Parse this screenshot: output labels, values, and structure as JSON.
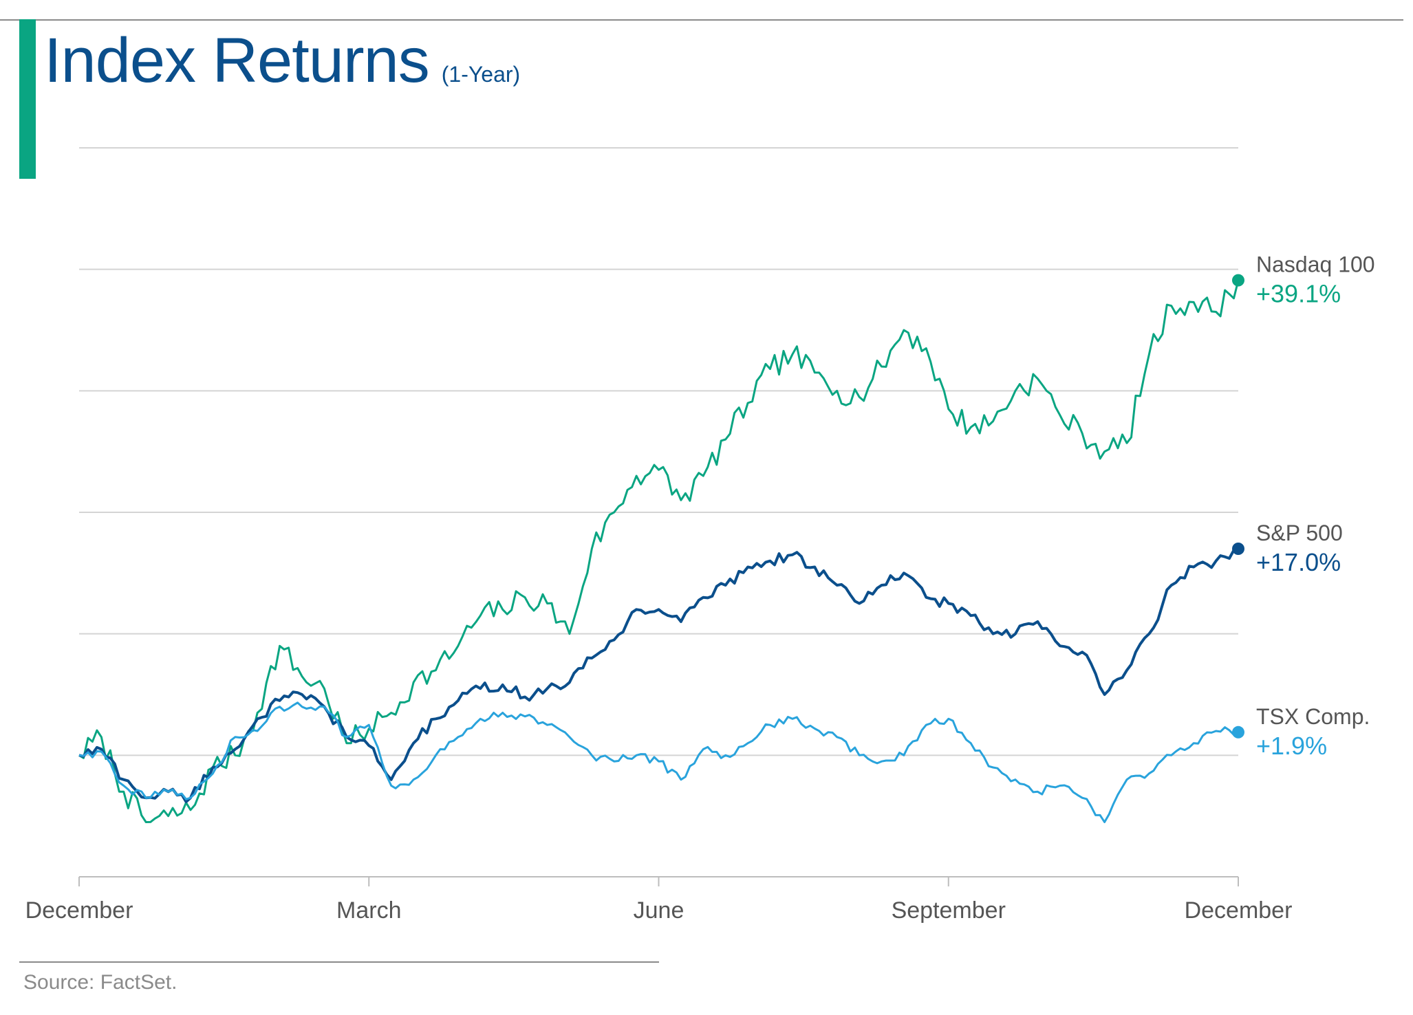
{
  "title": "Index Returns",
  "subtitle": "(1-Year)",
  "source": "Source: FactSet.",
  "colors": {
    "nasdaq": "#0aa582",
    "sp500": "#0b4f8c",
    "tsx": "#29a3dc",
    "grid": "#d4d4d4",
    "axis": "#bdbdbd",
    "text": "#555555"
  },
  "chart_data": {
    "type": "line",
    "xlabel": "",
    "ylabel": "",
    "grid": true,
    "y_ticks_labeled": false,
    "x_ticks": [
      "December",
      "March",
      "June",
      "September",
      "December"
    ],
    "x": [
      0,
      1,
      2,
      3,
      4,
      5,
      6,
      7,
      8,
      9,
      10,
      11,
      12,
      13,
      14,
      15,
      16,
      17,
      18,
      19,
      20,
      21,
      22,
      23,
      24,
      25,
      26,
      27,
      28,
      29,
      30,
      31,
      32,
      33,
      34,
      35,
      36,
      37,
      38,
      39,
      40,
      41,
      42,
      43,
      44,
      45,
      46,
      47,
      48,
      49,
      50,
      51,
      52
    ],
    "series": [
      {
        "name": "Nasdaq 100",
        "end_label": "+39.1%",
        "values": [
          0,
          1.5,
          -3,
          -5.5,
          -5,
          -4.5,
          -1,
          0,
          3.5,
          9,
          6.5,
          5.5,
          1,
          2.2,
          3.5,
          6,
          7,
          9,
          11.5,
          12,
          13,
          12.5,
          10,
          17,
          20,
          23,
          23.5,
          21,
          23,
          26,
          29,
          31.8,
          33,
          31.5,
          30,
          29.5,
          32,
          35,
          33.5,
          28.5,
          27,
          27.5,
          30,
          31,
          28,
          26.5,
          25,
          25.7,
          33,
          37,
          37.3,
          36.5,
          39.1
        ]
      },
      {
        "name": "S&P 500",
        "end_label": "+17.0%",
        "values": [
          0,
          0.5,
          -2,
          -3.5,
          -3,
          -3.5,
          -1,
          0.5,
          3,
          4.5,
          5,
          4,
          1.5,
          0.8,
          -2,
          1,
          3,
          4.5,
          5.5,
          5.8,
          4.8,
          5.5,
          6,
          8,
          9.5,
          12,
          12,
          11,
          13,
          14,
          15.5,
          16,
          16.5,
          15.5,
          14,
          12.5,
          14,
          15,
          13,
          12.5,
          11.5,
          10,
          10,
          11,
          9,
          8.5,
          5,
          7,
          10,
          14,
          15.5,
          16,
          17.0
        ]
      },
      {
        "name": "TSX Comp.",
        "end_label": "+1.9%",
        "values": [
          0,
          0.3,
          -2.5,
          -3.5,
          -3,
          -3.5,
          -1.5,
          1.5,
          2,
          4,
          4,
          4,
          1.5,
          2.5,
          -2.5,
          -2,
          0,
          1.5,
          3,
          3.5,
          3.2,
          2.5,
          1.5,
          0,
          -0.5,
          0,
          -0.5,
          -2,
          0.5,
          0,
          1,
          2.5,
          3,
          2.2,
          1.5,
          0,
          -0.5,
          0,
          2.5,
          3,
          1,
          -1,
          -2,
          -3,
          -2.5,
          -3.5,
          -5.5,
          -2,
          -1.5,
          0,
          1,
          2,
          1.9
        ]
      }
    ],
    "ylim": [
      -10,
      50
    ],
    "y_grid_values": [
      -10,
      0,
      10,
      20,
      30,
      40,
      50
    ]
  }
}
